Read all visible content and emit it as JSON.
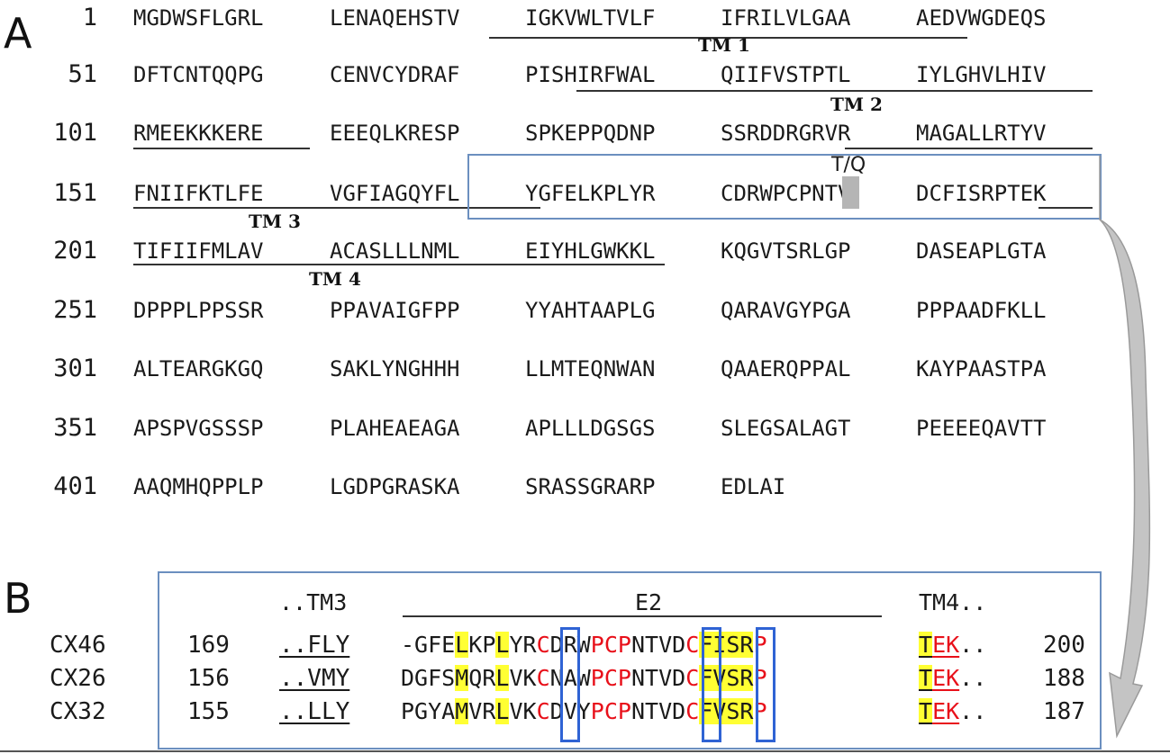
{
  "panel_a": {
    "label": "A",
    "rows": [
      {
        "num": "1",
        "blocks": [
          "MGDWSFLGRL",
          "LENAQEHSTV",
          "IGKVWLTVLF",
          "IFRILVLGAA",
          "AEDVWGDEQS"
        ]
      },
      {
        "num": "51",
        "blocks": [
          "DFTCNTQQPG",
          "CENVCYDRAF",
          "PISHIRFWAL",
          "QIIFVSTPTL",
          "IYLGHVLHIV"
        ]
      },
      {
        "num": "101",
        "blocks": [
          "RMEEKKKERE",
          "EEEQLKRESP",
          "SPKEPPQDNP",
          "SSRDDRGRVR",
          "MAGALLRTYV"
        ]
      },
      {
        "num": "151",
        "blocks": [
          "FNIIFKTLFE",
          "VGFIAGQYFL",
          "YGFELKPLYR",
          "CDRWPCPNTV",
          "DCFISRPTEK"
        ]
      },
      {
        "num": "201",
        "blocks": [
          "TIFIIFMLAV",
          "ACASLLLNML",
          "EIYHLGWKKL",
          "KQGVTSRLGP",
          "DASEAPLGTA"
        ]
      },
      {
        "num": "251",
        "blocks": [
          "DPPPLPPSSR",
          "PPAVAIGFPP",
          "YYAHTAAPLG",
          "QARAVGYPGA",
          "PPPAADFKLL"
        ]
      },
      {
        "num": "301",
        "blocks": [
          "ALTEARGKGQ",
          "SAKLYNGHHH",
          "LLMTEQNWAN",
          "QAAERQPPAL",
          "KAYPAASTPA"
        ]
      },
      {
        "num": "351",
        "blocks": [
          "APSPVGSSSP",
          "PLAHEAEAGA",
          "APLLLDGSGS",
          "SLEGSALAGT",
          "PEEEEQAVTT"
        ]
      },
      {
        "num": "401",
        "blocks": [
          "AAQMHQPPLP",
          "LGDPGRASKA",
          "SRASSGRARP",
          "EDLAI",
          ""
        ]
      }
    ],
    "tm_labels": [
      "TM 1",
      "TM 2",
      "TM 3",
      "TM 4"
    ],
    "site_label": "T/Q"
  },
  "panel_b": {
    "label": "B",
    "header": {
      "tm3": "..TM3",
      "e2": "E2",
      "tm4": "TM4.."
    },
    "rows": [
      {
        "name": "CX46",
        "start": "169",
        "tm3": "..FLY",
        "end": "200",
        "seq": [
          [
            "-GFE",
            ""
          ],
          [
            "L",
            "y"
          ],
          [
            "KP",
            ""
          ],
          [
            "L",
            "y"
          ],
          [
            "Y",
            ""
          ],
          [
            "R",
            ""
          ],
          [
            "C",
            "r"
          ],
          [
            "DRW",
            ""
          ],
          [
            "PCP",
            "r"
          ],
          [
            "N",
            ""
          ],
          [
            "TV",
            ""
          ],
          [
            "D",
            ""
          ],
          [
            "C",
            "r"
          ],
          [
            "FISR",
            "y"
          ],
          [
            "P",
            "r"
          ]
        ],
        "tm4": [
          [
            "T",
            "yu"
          ],
          [
            "EK",
            "ru"
          ],
          [
            "..",
            ""
          ]
        ]
      },
      {
        "name": "CX26",
        "start": "156",
        "tm3": "..VMY",
        "end": "188",
        "seq": [
          [
            "DGFS",
            ""
          ],
          [
            "M",
            "y"
          ],
          [
            "QR",
            ""
          ],
          [
            "L",
            "y"
          ],
          [
            "V",
            ""
          ],
          [
            "K",
            ""
          ],
          [
            "C",
            "r"
          ],
          [
            "NAW",
            ""
          ],
          [
            "PCP",
            "r"
          ],
          [
            "N",
            ""
          ],
          [
            "TV",
            ""
          ],
          [
            "D",
            ""
          ],
          [
            "C",
            "r"
          ],
          [
            "FVSR",
            "y"
          ],
          [
            "P",
            "r"
          ]
        ],
        "tm4": [
          [
            "T",
            "yu"
          ],
          [
            "EK",
            "ru"
          ],
          [
            "..",
            ""
          ]
        ]
      },
      {
        "name": "CX32",
        "start": "155",
        "tm3": "..LLY",
        "end": "187",
        "seq": [
          [
            "PGYA",
            ""
          ],
          [
            "M",
            "y"
          ],
          [
            "VR",
            ""
          ],
          [
            "L",
            "y"
          ],
          [
            "V",
            ""
          ],
          [
            "K",
            ""
          ],
          [
            "C",
            "r"
          ],
          [
            "DVY",
            ""
          ],
          [
            "PCP",
            "r"
          ],
          [
            "N",
            ""
          ],
          [
            "TV",
            ""
          ],
          [
            "D",
            ""
          ],
          [
            "C",
            "r"
          ],
          [
            "FVSR",
            "y"
          ],
          [
            "P",
            "r"
          ]
        ],
        "tm4": [
          [
            "T",
            "yu"
          ],
          [
            "EK",
            "ru"
          ],
          [
            "..",
            ""
          ]
        ]
      }
    ],
    "colors": {
      "highlight": "#ffff33",
      "conserved": "#e8101a",
      "box": "#2f63d4",
      "frame": "#6b8fbf"
    }
  }
}
